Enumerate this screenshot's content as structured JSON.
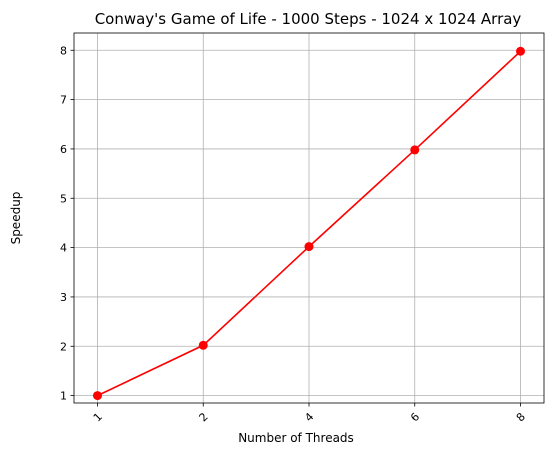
{
  "chart_data": {
    "type": "line",
    "title": "Conway's Game of Life - 1000 Steps - 1024 x 1024 Array",
    "xlabel": "Number of Threads",
    "ylabel": "Speedup",
    "categories": [
      "1",
      "2",
      "4",
      "6",
      "8"
    ],
    "series": [
      {
        "values": [
          1.0,
          2.02,
          4.02,
          5.98,
          7.98
        ],
        "color": "#ff0000",
        "marker": "circle"
      }
    ],
    "ylim": [
      0.85,
      8.35
    ],
    "yticks": [
      1,
      2,
      3,
      4,
      5,
      6,
      7,
      8
    ],
    "xtick_rotation": 45,
    "grid": true
  }
}
